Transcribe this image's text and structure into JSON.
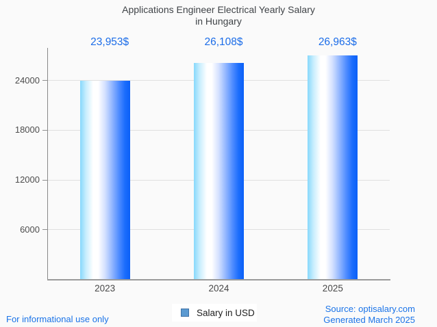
{
  "title": {
    "line1": "Applications Engineer Electrical Yearly Salary",
    "line2": "in Hungary"
  },
  "chart_data": {
    "type": "bar",
    "title": "Applications Engineer Electrical Yearly Salary in Hungary",
    "categories": [
      "2023",
      "2024",
      "2025"
    ],
    "values": [
      23953,
      26108,
      26963
    ],
    "value_labels": [
      "23,953$",
      "26,108$",
      "26,963$"
    ],
    "xlabel": "",
    "ylabel": "",
    "ylim": [
      0,
      27900
    ],
    "yticks": [
      6000,
      12000,
      18000,
      24000
    ],
    "grid": "horizontal",
    "legend": {
      "label": "Salary in USD",
      "position": "bottom"
    }
  },
  "legend": {
    "label": "Salary in USD"
  },
  "footer": {
    "disclaimer": "For informational use only",
    "source": "Source: optisalary.com",
    "generated": "Generated March 2025"
  },
  "colors": {
    "background": "#fafafa",
    "title_text": "#3f4347",
    "value_label_blue": "#1b6ce8",
    "axis_text": "#4c4c4c",
    "footer_blue": "#1a73e8",
    "gridline": "#e0e0e0",
    "axis_line": "#8f8f8f",
    "legend_swatch_fill": "#5b9ad1",
    "legend_swatch_border": "#3f72a6",
    "bar_gradient": [
      "#87d8fc",
      "#ffffff",
      "#d3e0ff",
      "#4d8bff",
      "#0b60f7"
    ]
  }
}
